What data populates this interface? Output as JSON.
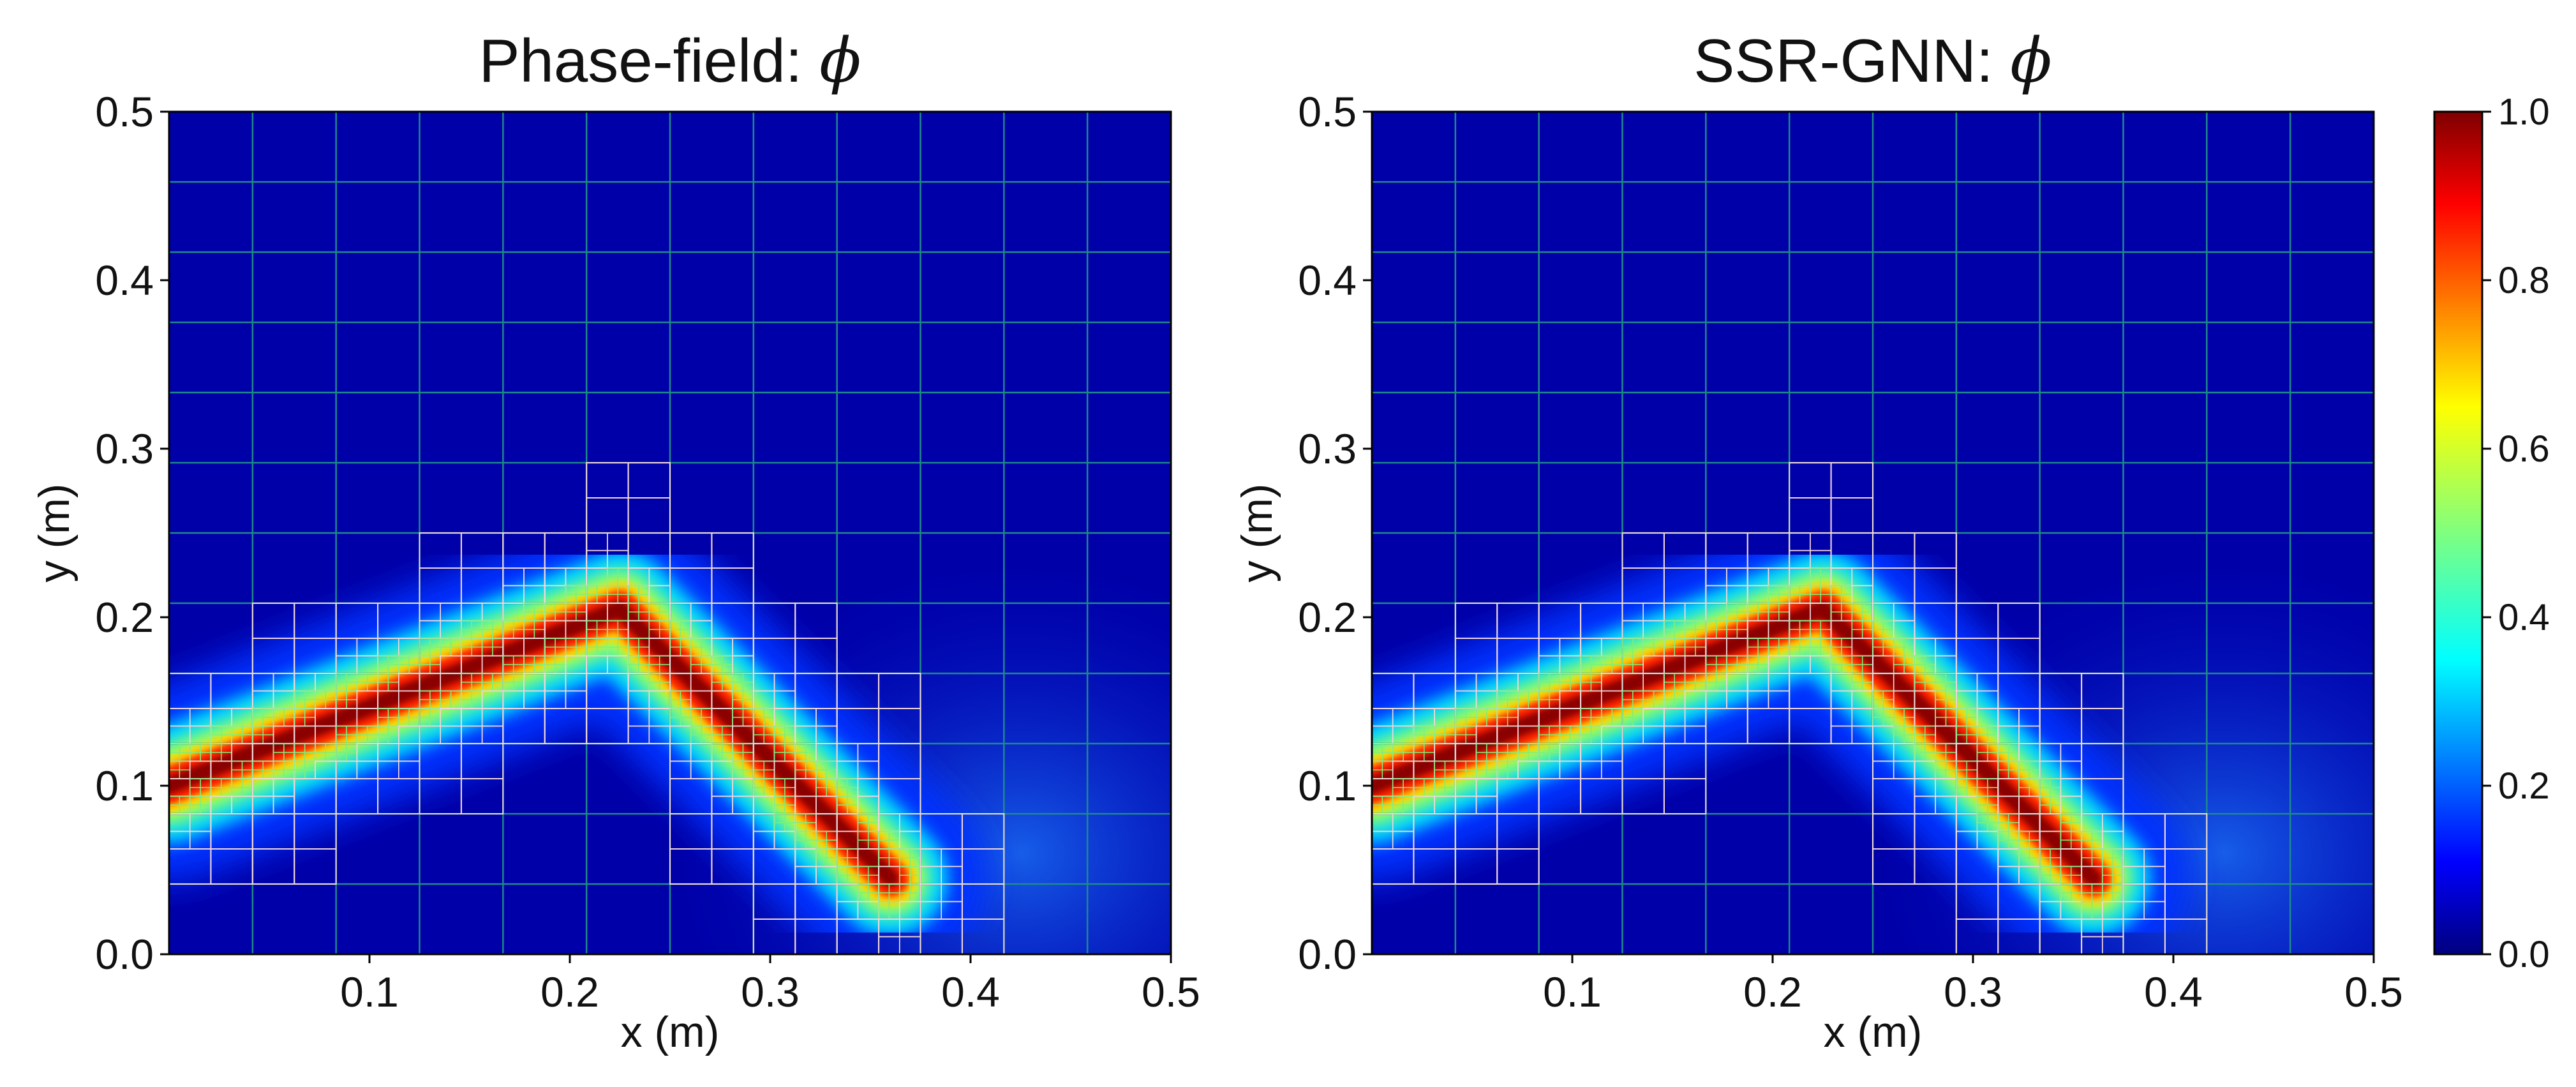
{
  "colors": {
    "background": "#ffffff",
    "mesh_coarse": "#1f8a8a",
    "mesh_fine": "#f2d7d9",
    "mesh_finest": "#7cf07c",
    "colorscale": [
      "#00007f",
      "#0000ff",
      "#007fff",
      "#00ffff",
      "#7fff7f",
      "#ffff00",
      "#ff7f00",
      "#ff0000",
      "#7f0000"
    ]
  },
  "chart_data": [
    {
      "type": "heatmap",
      "title": "Phase-field: ",
      "title_symbol": "ϕ",
      "xlabel": "x (m)",
      "ylabel": "y (m)",
      "xlim": [
        0,
        0.5
      ],
      "ylim": [
        0,
        0.5
      ],
      "xticks": [
        "0.1",
        "0.2",
        "0.3",
        "0.4",
        "0.5"
      ],
      "yticks": [
        "0.0",
        "0.1",
        "0.2",
        "0.3",
        "0.4",
        "0.5"
      ],
      "colormap": "jet",
      "value_range": [
        0,
        1
      ],
      "crack_path": [
        [
          0.0,
          0.1
        ],
        [
          0.225,
          0.205
        ],
        [
          0.36,
          0.045
        ]
      ],
      "crack_value": 1.0,
      "crack_width": 0.016,
      "grid": "adaptive quadtree mesh"
    },
    {
      "type": "heatmap",
      "title": "SSR-GNN: ",
      "title_symbol": "ϕ",
      "xlabel": "x (m)",
      "ylabel": "y (m)",
      "xlim": [
        0,
        0.5
      ],
      "ylim": [
        0,
        0.5
      ],
      "xticks": [
        "0.1",
        "0.2",
        "0.3",
        "0.4",
        "0.5"
      ],
      "yticks": [
        "0.0",
        "0.1",
        "0.2",
        "0.3",
        "0.4",
        "0.5"
      ],
      "colormap": "jet",
      "value_range": [
        0,
        1
      ],
      "crack_path": [
        [
          0.0,
          0.1
        ],
        [
          0.225,
          0.205
        ],
        [
          0.36,
          0.045
        ]
      ],
      "crack_value": 1.0,
      "crack_width": 0.016,
      "grid": "adaptive quadtree mesh"
    }
  ],
  "colorbar": {
    "ticks": [
      "0.0",
      "0.2",
      "0.4",
      "0.6",
      "0.8",
      "1.0"
    ],
    "range": [
      0,
      1
    ]
  }
}
